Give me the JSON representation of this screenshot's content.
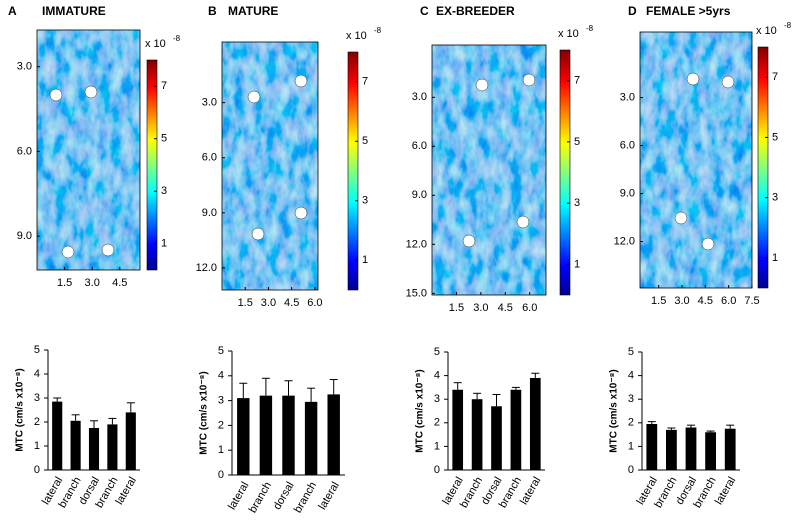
{
  "chart_data": [
    {
      "type": "heatmap",
      "panel": "A",
      "title": "IMMATURE",
      "xlim": [
        0,
        5.6
      ],
      "xticks": [
        {
          "value": 1.5,
          "label": "1.5"
        },
        {
          "value": 3.0,
          "label": "3.0"
        },
        {
          "value": 4.5,
          "label": "4.5"
        }
      ],
      "ylim": [
        1.7,
        10.2
      ],
      "yticks": [
        {
          "value": 3.0,
          "label": "3.0"
        },
        {
          "value": 6.0,
          "label": "6.0"
        },
        {
          "value": 9.0,
          "label": "9.0"
        }
      ],
      "clim": [
        0,
        8
      ],
      "cticks": [
        1,
        3,
        5,
        7
      ],
      "colorbar_label": "x 10",
      "colorbar_exponent": "-8"
    },
    {
      "type": "heatmap",
      "panel": "B",
      "title": "MATURE",
      "xlim": [
        0,
        6.2
      ],
      "xticks": [
        {
          "value": 1.5,
          "label": "1.5"
        },
        {
          "value": 3.0,
          "label": "3.0"
        },
        {
          "value": 4.5,
          "label": "4.5"
        },
        {
          "value": 6.0,
          "label": "6.0"
        }
      ],
      "ylim": [
        -0.3,
        13.2
      ],
      "yticks": [
        {
          "value": 3.0,
          "label": "3.0"
        },
        {
          "value": 6.0,
          "label": "6.0"
        },
        {
          "value": 9.0,
          "label": "9.0"
        },
        {
          "value": 12.0,
          "label": "12.0"
        }
      ],
      "clim": [
        0,
        8
      ],
      "cticks": [
        1,
        3,
        5,
        7
      ],
      "colorbar_label": "x 10",
      "colorbar_exponent": "-8"
    },
    {
      "type": "heatmap",
      "panel": "C",
      "title": "EX-BREEDER",
      "xlim": [
        0,
        7.0
      ],
      "xticks": [
        {
          "value": 1.5,
          "label": "1.5"
        },
        {
          "value": 3.0,
          "label": "3.0"
        },
        {
          "value": 4.5,
          "label": "4.5"
        },
        {
          "value": 6.0,
          "label": "6.0"
        }
      ],
      "ylim": [
        -0.2,
        15.1
      ],
      "yticks": [
        {
          "value": 3.0,
          "label": "3.0"
        },
        {
          "value": 6.0,
          "label": "6.0"
        },
        {
          "value": 9.0,
          "label": "9.0"
        },
        {
          "value": 12.0,
          "label": "12.0"
        },
        {
          "value": 15.0,
          "label": "15.0"
        }
      ],
      "clim": [
        0,
        8
      ],
      "cticks": [
        1,
        3,
        5,
        7
      ],
      "colorbar_label": "x 10",
      "colorbar_exponent": "-8"
    },
    {
      "type": "heatmap",
      "panel": "D",
      "title": "FEMALE >5yrs",
      "xlim": [
        0.3,
        7.5
      ],
      "xticks": [
        {
          "value": 1.5,
          "label": "1.5"
        },
        {
          "value": 3.0,
          "label": "3.0"
        },
        {
          "value": 4.5,
          "label": "4.5"
        },
        {
          "value": 6.0,
          "label": "6.0"
        },
        7.5
      ],
      "ylim": [
        -1.1,
        14.9
      ],
      "yticks": [
        {
          "value": 3.0,
          "label": "3.0"
        },
        {
          "value": 6.0,
          "label": "6.0"
        },
        {
          "value": 9.0,
          "label": "9.0"
        },
        {
          "value": 12.0,
          "label": "12.0"
        }
      ],
      "clim": [
        0,
        8
      ],
      "cticks": [
        1,
        3,
        5,
        7
      ],
      "colorbar_label": "x 10",
      "colorbar_exponent": "-8"
    },
    {
      "type": "bar",
      "ylabel": "MTC (cm/s x10⁻⁸)",
      "categories": [
        "lateral",
        "branch",
        "dorsal",
        "branch",
        "lateral"
      ],
      "values": [
        2.85,
        2.05,
        1.75,
        1.9,
        2.4
      ],
      "errors": [
        0.15,
        0.25,
        0.3,
        0.25,
        0.4
      ],
      "color": "#000000",
      "ylim": [
        0,
        5
      ],
      "yticks": [
        0,
        1,
        2,
        3,
        4,
        5
      ]
    },
    {
      "type": "bar",
      "ylabel": "MTC (cm/s x10⁻⁸)",
      "categories": [
        "lateral",
        "branch",
        "dorsal",
        "branch",
        "lateral"
      ],
      "values": [
        3.1,
        3.2,
        3.2,
        2.95,
        3.25
      ],
      "errors": [
        0.6,
        0.7,
        0.6,
        0.55,
        0.6
      ],
      "color": "#000000",
      "ylim": [
        0,
        5
      ],
      "yticks": [
        0,
        1,
        2,
        3,
        4,
        5
      ]
    },
    {
      "type": "bar",
      "ylabel": "MTC (cm/s x10⁻⁸)",
      "categories": [
        "lateral",
        "branch",
        "dorsal",
        "branch",
        "lateral"
      ],
      "values": [
        3.4,
        3.0,
        2.7,
        3.4,
        3.9
      ],
      "errors": [
        0.3,
        0.25,
        0.5,
        0.1,
        0.2
      ],
      "color": "#000000",
      "ylim": [
        0,
        5
      ],
      "yticks": [
        0,
        1,
        2,
        3,
        4,
        5
      ]
    },
    {
      "type": "bar",
      "ylabel": "MTC (cm/s x10⁻⁸)",
      "categories": [
        "lateral",
        "branch",
        "dorsal",
        "branch",
        "lateral"
      ],
      "values": [
        1.95,
        1.7,
        1.8,
        1.6,
        1.75
      ],
      "errors": [
        0.1,
        0.08,
        0.1,
        0.05,
        0.15
      ],
      "color": "#000000",
      "ylim": [
        0,
        5
      ],
      "yticks": [
        0,
        1,
        2,
        3,
        4,
        5
      ]
    }
  ]
}
